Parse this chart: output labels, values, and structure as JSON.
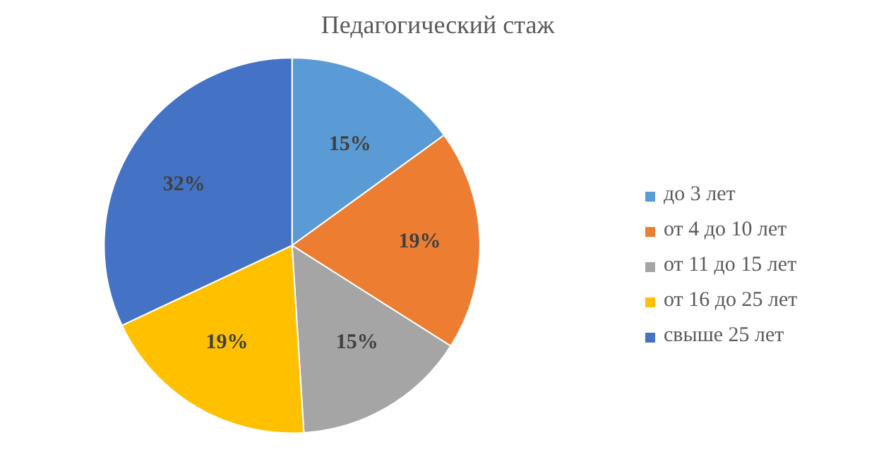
{
  "chart_data": {
    "type": "pie",
    "title": "Педагогический стаж",
    "categories": [
      "до 3 лет",
      "от 4 до 10 лет",
      "от 11 до 15 лет",
      "от 16 до 25 лет",
      "свыше 25 лет"
    ],
    "values": [
      15,
      19,
      15,
      19,
      32
    ],
    "colors": [
      "#5b9bd5",
      "#ed7d31",
      "#a5a5a5",
      "#ffc000",
      "#4472c4"
    ],
    "value_labels": [
      "15%",
      "19%",
      "15%",
      "19%",
      "32%"
    ],
    "legend": "right"
  }
}
